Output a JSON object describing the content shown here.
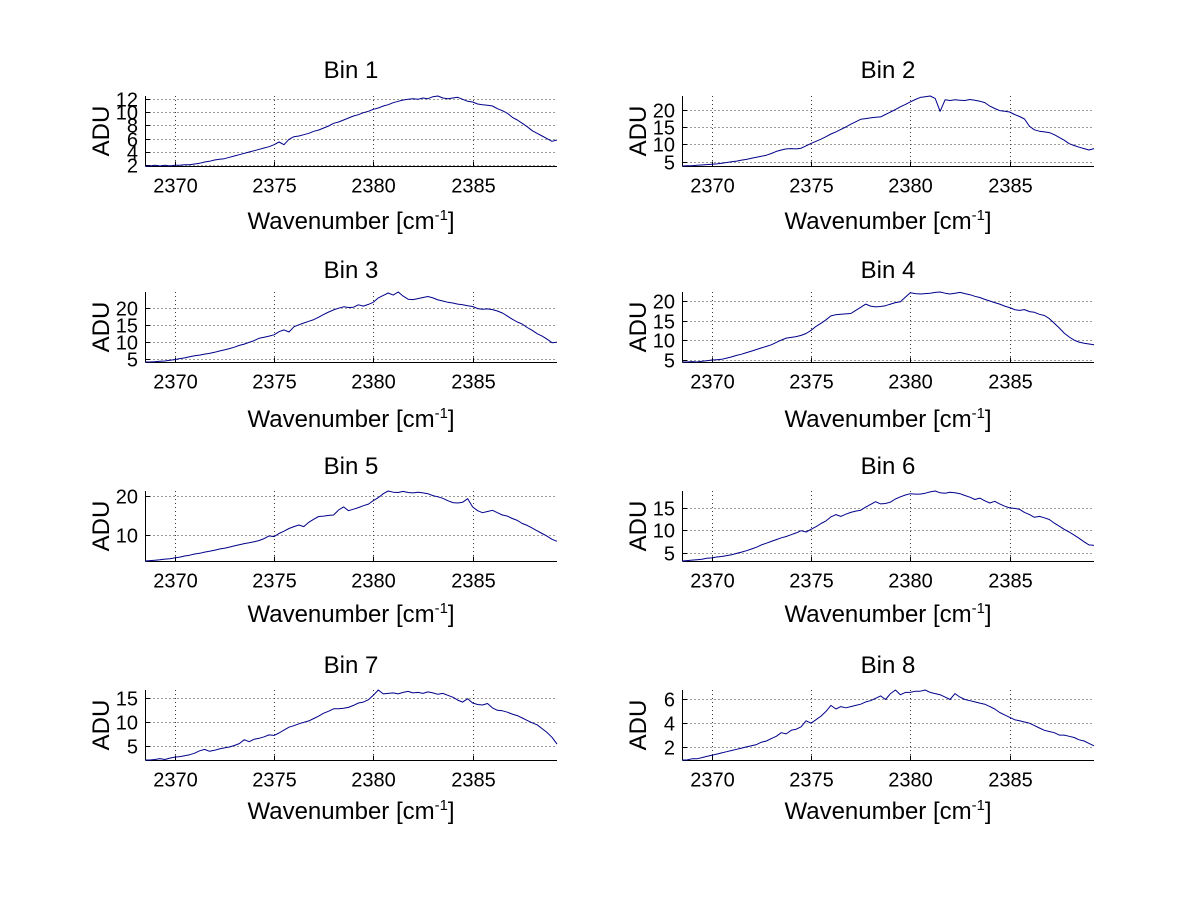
{
  "figure": {
    "background": "#ffffff"
  },
  "labels": {
    "ylabel": "ADU",
    "xlabel_pre": "Wavenumber [cm",
    "xlabel_sup": "-1",
    "xlabel_post": "]"
  },
  "style": {
    "line_color": "#00008B",
    "grid_color": "#3a3a3a",
    "axis_color": "#000000",
    "text_color": "#000000"
  },
  "chart_data": [
    {
      "type": "line",
      "title": "Bin 1",
      "xlabel": "Wavenumber [cm^-1]",
      "ylabel": "ADU",
      "x_start": 2368.5,
      "x_step": 0.25,
      "xlim": [
        2368.5,
        2389.25
      ],
      "ylim": [
        1.9,
        12.4
      ],
      "x_ticks": [
        2370,
        2375,
        2380,
        2385
      ],
      "y_ticks": [
        2,
        4,
        6,
        8,
        10,
        12
      ],
      "grid": true,
      "y": [
        1.9,
        1.9,
        2.0,
        1.9,
        2.0,
        1.9,
        2.0,
        2.0,
        2.1,
        2.1,
        2.2,
        2.3,
        2.5,
        2.6,
        2.8,
        2.9,
        3.0,
        3.2,
        3.4,
        3.6,
        3.8,
        4.0,
        4.2,
        4.4,
        4.6,
        4.8,
        5.1,
        5.5,
        5.1,
        5.9,
        6.3,
        6.4,
        6.6,
        6.8,
        7.1,
        7.3,
        7.6,
        7.9,
        8.3,
        8.5,
        8.8,
        9.1,
        9.4,
        9.6,
        9.9,
        10.1,
        10.4,
        10.6,
        10.9,
        11.1,
        11.4,
        11.6,
        11.8,
        11.9,
        12.0,
        11.9,
        12.1,
        12.0,
        12.3,
        12.4,
        12.1,
        12.0,
        12.1,
        12.2,
        11.9,
        11.6,
        11.5,
        11.2,
        11.1,
        11.0,
        10.9,
        10.5,
        10.2,
        9.8,
        9.2,
        8.8,
        8.3,
        7.8,
        7.2,
        6.8,
        6.4,
        6.0,
        5.6,
        5.8
      ]
    },
    {
      "type": "line",
      "title": "Bin 2",
      "xlabel": "Wavenumber [cm^-1]",
      "ylabel": "ADU",
      "x_start": 2368.5,
      "x_step": 0.25,
      "xlim": [
        2368.5,
        2389.25
      ],
      "ylim": [
        3.8,
        23.9
      ],
      "x_ticks": [
        2370,
        2375,
        2380,
        2385
      ],
      "y_ticks": [
        5,
        10,
        15,
        20
      ],
      "grid": true,
      "y": [
        3.8,
        3.9,
        3.9,
        4.0,
        4.1,
        4.2,
        4.3,
        4.4,
        4.6,
        4.8,
        5.0,
        5.2,
        5.5,
        5.7,
        6.0,
        6.3,
        6.6,
        6.9,
        7.4,
        8.0,
        8.4,
        8.7,
        8.8,
        8.7,
        8.9,
        9.6,
        10.3,
        10.9,
        11.5,
        12.2,
        13.0,
        13.6,
        14.3,
        15.0,
        15.8,
        16.5,
        17.2,
        17.4,
        17.6,
        17.8,
        17.9,
        18.6,
        19.3,
        20.0,
        20.8,
        21.5,
        22.2,
        22.9,
        23.5,
        23.7,
        23.9,
        23.2,
        19.5,
        22.8,
        22.6,
        22.8,
        22.7,
        22.6,
        22.9,
        22.7,
        22.4,
        22.0,
        21.0,
        20.3,
        19.7,
        19.5,
        19.3,
        18.6,
        18.0,
        17.3,
        15.2,
        14.2,
        13.8,
        13.6,
        13.4,
        12.8,
        12.0,
        11.2,
        10.2,
        9.7,
        9.2,
        8.8,
        8.4,
        8.8
      ]
    },
    {
      "type": "line",
      "title": "Bin 3",
      "xlabel": "Wavenumber [cm^-1]",
      "ylabel": "ADU",
      "x_start": 2368.5,
      "x_step": 0.25,
      "xlim": [
        2368.5,
        2389.25
      ],
      "ylim": [
        4.2,
        24.5
      ],
      "x_ticks": [
        2370,
        2375,
        2380,
        2385
      ],
      "y_ticks": [
        5,
        10,
        15,
        20
      ],
      "grid": true,
      "y": [
        4.2,
        4.2,
        4.3,
        4.4,
        4.5,
        4.7,
        4.9,
        5.2,
        5.4,
        5.7,
        6.0,
        6.2,
        6.5,
        6.7,
        7.0,
        7.4,
        7.7,
        8.1,
        8.5,
        9.0,
        9.4,
        9.9,
        10.4,
        11.1,
        11.4,
        11.7,
        12.1,
        13.0,
        13.5,
        12.9,
        14.4,
        15.0,
        15.5,
        16.0,
        16.5,
        17.2,
        18.0,
        18.7,
        19.3,
        19.8,
        20.2,
        20.0,
        20.1,
        20.8,
        20.4,
        20.9,
        21.5,
        22.8,
        23.5,
        24.2,
        23.6,
        24.5,
        23.3,
        22.4,
        22.3,
        22.6,
        22.9,
        23.2,
        22.8,
        22.2,
        21.9,
        21.5,
        21.3,
        21.0,
        20.8,
        20.5,
        20.3,
        19.7,
        19.5,
        19.6,
        19.4,
        19.0,
        18.4,
        17.5,
        16.6,
        15.8,
        15.2,
        14.2,
        13.4,
        12.4,
        11.7,
        10.8,
        9.8,
        9.9
      ]
    },
    {
      "type": "line",
      "title": "Bin 4",
      "xlabel": "Wavenumber [cm^-1]",
      "ylabel": "ADU",
      "x_start": 2368.5,
      "x_step": 0.25,
      "xlim": [
        2368.5,
        2389.25
      ],
      "ylim": [
        4.4,
        22.3
      ],
      "x_ticks": [
        2370,
        2375,
        2380,
        2385
      ],
      "y_ticks": [
        5,
        10,
        15,
        20
      ],
      "grid": true,
      "y": [
        4.4,
        4.4,
        4.5,
        4.4,
        4.6,
        4.7,
        4.9,
        5.0,
        5.1,
        5.4,
        5.7,
        6.1,
        6.4,
        6.8,
        7.2,
        7.6,
        8.0,
        8.4,
        8.8,
        9.4,
        10.0,
        10.5,
        10.7,
        10.9,
        11.2,
        11.7,
        12.5,
        13.5,
        14.3,
        15.2,
        16.2,
        16.5,
        16.6,
        16.7,
        16.8,
        17.6,
        18.4,
        19.2,
        18.7,
        18.5,
        18.6,
        18.8,
        19.2,
        19.6,
        19.8,
        21.0,
        22.1,
        21.9,
        21.8,
        21.9,
        22.0,
        22.2,
        22.3,
        22.0,
        21.8,
        22.0,
        22.2,
        21.9,
        21.6,
        21.2,
        20.9,
        20.4,
        20.0,
        19.6,
        19.2,
        18.7,
        18.3,
        17.8,
        17.6,
        17.8,
        17.3,
        17.1,
        16.6,
        16.3,
        15.5,
        14.3,
        13.1,
        11.8,
        10.8,
        10.0,
        9.5,
        9.2,
        9.0,
        8.8
      ]
    },
    {
      "type": "line",
      "title": "Bin 5",
      "xlabel": "Wavenumber [cm^-1]",
      "ylabel": "ADU",
      "x_start": 2368.5,
      "x_step": 0.25,
      "xlim": [
        2368.5,
        2389.25
      ],
      "ylim": [
        3.2,
        21.3
      ],
      "x_ticks": [
        2370,
        2375,
        2380,
        2385
      ],
      "y_ticks": [
        10,
        20
      ],
      "grid": true,
      "y": [
        3.2,
        3.3,
        3.4,
        3.5,
        3.7,
        3.8,
        4.0,
        4.2,
        4.5,
        4.7,
        5.0,
        5.2,
        5.5,
        5.7,
        6.0,
        6.3,
        6.5,
        6.8,
        7.1,
        7.4,
        7.7,
        7.9,
        8.2,
        8.5,
        9.0,
        9.7,
        9.5,
        10.3,
        10.9,
        11.6,
        12.1,
        12.5,
        12.1,
        13.2,
        14.0,
        14.7,
        14.8,
        15.0,
        15.1,
        16.4,
        17.2,
        16.2,
        16.6,
        17.0,
        17.5,
        17.9,
        18.8,
        19.6,
        20.6,
        21.3,
        21.0,
        20.9,
        21.2,
        20.9,
        20.8,
        21.0,
        20.8,
        20.6,
        20.1,
        19.8,
        19.4,
        18.8,
        18.3,
        18.2,
        18.4,
        19.3,
        17.2,
        16.2,
        15.7,
        16.0,
        16.3,
        15.7,
        15.1,
        14.8,
        14.2,
        13.7,
        12.9,
        12.4,
        11.7,
        11.0,
        10.3,
        9.6,
        8.8,
        8.3
      ]
    },
    {
      "type": "line",
      "title": "Bin 6",
      "xlabel": "Wavenumber [cm^-1]",
      "ylabel": "ADU",
      "x_start": 2368.5,
      "x_step": 0.25,
      "xlim": [
        2368.5,
        2389.25
      ],
      "ylim": [
        3.1,
        18.8
      ],
      "x_ticks": [
        2370,
        2375,
        2380,
        2385
      ],
      "y_ticks": [
        5,
        10,
        15
      ],
      "grid": true,
      "y": [
        3.1,
        3.2,
        3.3,
        3.4,
        3.5,
        3.7,
        3.8,
        4.0,
        4.1,
        4.3,
        4.5,
        4.8,
        5.1,
        5.4,
        5.8,
        6.2,
        6.7,
        7.1,
        7.5,
        7.9,
        8.3,
        8.6,
        9.0,
        9.4,
        9.9,
        9.6,
        10.2,
        10.8,
        11.5,
        12.1,
        13.0,
        13.5,
        13.1,
        13.6,
        14.0,
        14.3,
        14.5,
        15.2,
        15.8,
        16.4,
        15.9,
        16.0,
        16.3,
        17.0,
        17.5,
        17.9,
        18.2,
        18.1,
        18.1,
        18.3,
        18.6,
        18.8,
        18.4,
        18.3,
        18.5,
        18.4,
        18.2,
        17.8,
        17.4,
        16.9,
        17.2,
        16.6,
        16.1,
        16.5,
        15.9,
        15.4,
        15.0,
        14.9,
        14.7,
        14.0,
        13.5,
        12.9,
        13.1,
        12.8,
        12.4,
        11.6,
        10.9,
        10.2,
        9.6,
        8.9,
        8.2,
        7.4,
        6.7,
        6.6
      ]
    },
    {
      "type": "line",
      "title": "Bin 7",
      "xlabel": "Wavenumber [cm^-1]",
      "ylabel": "ADU",
      "x_start": 2368.5,
      "x_step": 0.25,
      "xlim": [
        2368.5,
        2389.25
      ],
      "ylim": [
        2.1,
        16.6
      ],
      "x_ticks": [
        2370,
        2375,
        2380,
        2385
      ],
      "y_ticks": [
        5,
        10,
        15
      ],
      "grid": true,
      "y": [
        2.1,
        2.1,
        2.2,
        2.4,
        2.2,
        2.5,
        2.7,
        2.8,
        3.0,
        3.2,
        3.5,
        4.0,
        4.3,
        3.9,
        4.1,
        4.4,
        4.6,
        4.8,
        5.1,
        5.5,
        6.3,
        5.9,
        6.4,
        6.6,
        6.9,
        7.3,
        7.2,
        7.7,
        8.3,
        8.9,
        9.2,
        9.6,
        9.9,
        10.2,
        10.7,
        11.2,
        11.8,
        12.2,
        12.7,
        12.7,
        12.8,
        13.0,
        13.4,
        13.9,
        14.1,
        14.6,
        15.5,
        16.6,
        15.8,
        15.9,
        16.0,
        15.8,
        16.1,
        16.3,
        16.0,
        16.1,
        15.9,
        16.2,
        16.0,
        15.7,
        15.9,
        15.5,
        15.1,
        14.5,
        14.1,
        14.8,
        13.9,
        13.6,
        13.5,
        13.8,
        12.9,
        12.4,
        12.3,
        12.0,
        11.6,
        11.3,
        10.8,
        10.3,
        9.8,
        9.4,
        8.6,
        7.8,
        6.8,
        5.4
      ]
    },
    {
      "type": "line",
      "title": "Bin 8",
      "xlabel": "Wavenumber [cm^-1]",
      "ylabel": "ADU",
      "x_start": 2368.5,
      "x_step": 0.25,
      "xlim": [
        2368.5,
        2389.25
      ],
      "ylim": [
        0.9,
        6.8
      ],
      "x_ticks": [
        2370,
        2375,
        2380,
        2385
      ],
      "y_ticks": [
        2,
        4,
        6
      ],
      "grid": true,
      "y": [
        0.9,
        0.9,
        1.0,
        1.0,
        1.1,
        1.2,
        1.3,
        1.4,
        1.5,
        1.6,
        1.7,
        1.8,
        1.9,
        2.0,
        2.1,
        2.2,
        2.4,
        2.5,
        2.7,
        2.9,
        3.2,
        3.1,
        3.4,
        3.5,
        3.7,
        4.2,
        4.0,
        4.3,
        4.6,
        5.0,
        5.5,
        5.2,
        5.4,
        5.3,
        5.4,
        5.5,
        5.6,
        5.8,
        5.9,
        6.1,
        6.3,
        6.0,
        6.5,
        6.8,
        6.4,
        6.6,
        6.6,
        6.7,
        6.7,
        6.8,
        6.6,
        6.5,
        6.4,
        6.2,
        6.0,
        6.5,
        6.2,
        6.0,
        5.9,
        5.8,
        5.7,
        5.6,
        5.4,
        5.2,
        4.9,
        4.7,
        4.5,
        4.3,
        4.2,
        4.1,
        4.0,
        3.8,
        3.6,
        3.4,
        3.3,
        3.2,
        3.0,
        3.0,
        2.9,
        2.8,
        2.6,
        2.5,
        2.3,
        2.1
      ]
    }
  ]
}
